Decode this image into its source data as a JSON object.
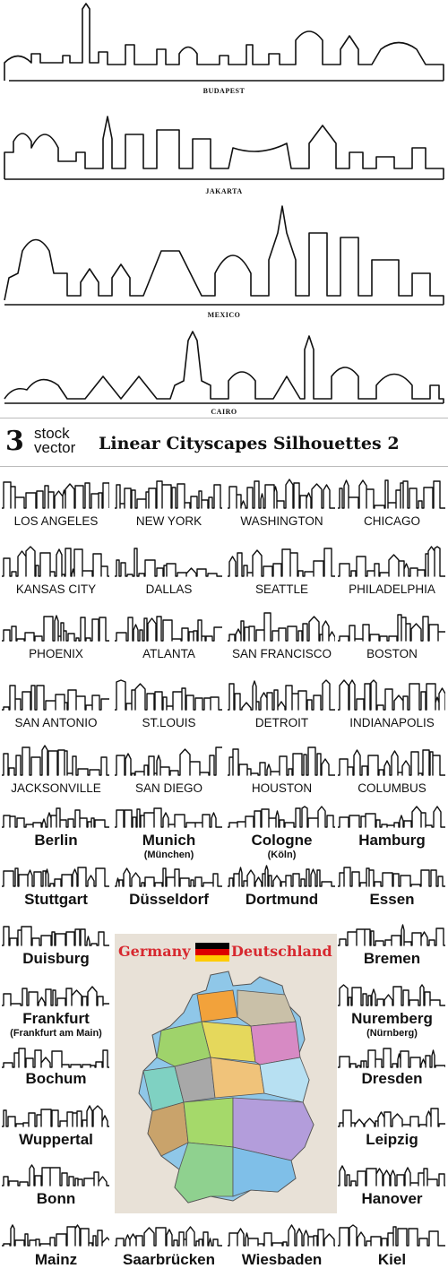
{
  "top_cities": [
    "BUDAPEST",
    "JAKARTA",
    "MEXICO",
    "CAIRO"
  ],
  "banner": {
    "logo_number": "3",
    "logo_word1": "stock",
    "logo_word2": "vector",
    "title": "Linear Cityscapes Silhouettes 2"
  },
  "us_cities": [
    "LOS ANGELES",
    "NEW YORK",
    "WASHINGTON",
    "CHICAGO",
    "KANSAS CITY",
    "DALLAS",
    "SEATTLE",
    "PHILADELPHIA",
    "PHOENIX",
    "ATLANTA",
    "SAN FRANCISCO",
    "BOSTON",
    "SAN ANTONIO",
    "ST.LOUIS",
    "DETROIT",
    "INDIANAPOLIS",
    "JACKSONVILLE",
    "SAN DIEGO",
    "HOUSTON",
    "COLUMBUS"
  ],
  "german_cities": {
    "berlin": "Berlin",
    "munich": "Munich",
    "munich_sub": "(München)",
    "cologne": "Cologne",
    "cologne_sub": "(Köln)",
    "hamburg": "Hamburg",
    "stuttgart": "Stuttgart",
    "dusseldorf": "Düsseldorf",
    "dortmund": "Dortmund",
    "essen": "Essen",
    "duisburg": "Duisburg",
    "bremen": "Bremen",
    "frankfurt": "Frankfurt",
    "frankfurt_sub": "(Frankfurt am Main)",
    "nuremberg": "Nuremberg",
    "nuremberg_sub": "(Nürnberg)",
    "bochum": "Bochum",
    "dresden": "Dresden",
    "wuppertal": "Wuppertal",
    "leipzig": "Leipzig",
    "bonn": "Bonn",
    "hanover": "Hanover",
    "mainz": "Mainz",
    "saarbrucken": "Saarbrücken",
    "wiesbaden": "Wiesbaden",
    "kiel": "Kiel"
  },
  "map": {
    "title_left": "Germany",
    "title_right": "Deutschland",
    "title_color": "#d7282f",
    "flag_colors": [
      "#000000",
      "#dd0000",
      "#ffcc00"
    ]
  }
}
